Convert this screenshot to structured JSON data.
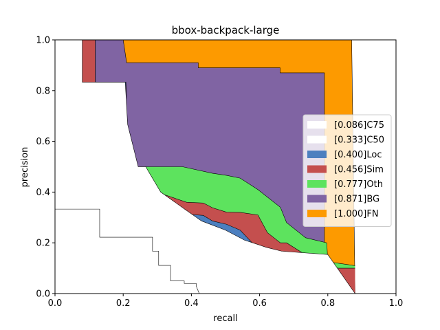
{
  "chart_data": {
    "type": "area",
    "title": "bbox-backpack-large",
    "xlabel": "recall",
    "ylabel": "precision",
    "xlim": [
      0,
      1
    ],
    "ylim": [
      0,
      1
    ],
    "xticks": [
      "0.0",
      "0.2",
      "0.4",
      "0.6",
      "0.8",
      "1.0"
    ],
    "yticks": [
      "0.0",
      "0.2",
      "0.4",
      "0.6",
      "0.8",
      "1.0"
    ],
    "legend_position": "right",
    "series": [
      {
        "name": "[0.086]C75",
        "color": "#ffffff",
        "x": [
          0,
          0.118,
          0.118,
          0.131,
          0.131,
          0.252,
          0.252,
          0.286,
          0.286,
          0.304,
          0.304,
          0.327,
          0.327,
          0.339,
          0.339,
          0.362,
          0.362,
          0.379,
          0.379,
          0.414,
          0.414,
          0.423
        ],
        "y": [
          0.333,
          0.333,
          0.333,
          0.333,
          0.222,
          0.222,
          0.222,
          0.222,
          0.167,
          0.167,
          0.111,
          0.111,
          0.111,
          0.111,
          0.05,
          0.05,
          0.05,
          0.05,
          0.04,
          0.04,
          0.03,
          0
        ]
      },
      {
        "name": "[0.333]C50",
        "color": "#ffffff",
        "x": [
          0,
          0.08,
          0.08,
          0.13,
          0.13,
          0.206,
          0.213,
          0.213,
          0.244,
          0.266,
          0.31,
          0.38,
          0.43,
          0.5,
          0.54,
          0.555,
          0.58,
          0.62,
          0.665,
          0.665,
          0.8,
          0.8,
          0.88
        ],
        "y": [
          1,
          1,
          0.833,
          0.833,
          0.833,
          0.833,
          0.667,
          0.667,
          0.5,
          0.5,
          0.4,
          0.333,
          0.286,
          0.25,
          0.222,
          0.211,
          0.2,
          0.182,
          0.167,
          0.167,
          0.154,
          0.154,
          0
        ]
      },
      {
        "name": "[0.400]Loc",
        "color": "#4c7fbf",
        "x": [
          0,
          0.08,
          0.08,
          0.208,
          0.213,
          0.244,
          0.298,
          0.386,
          0.435,
          0.462,
          0.503,
          0.543,
          0.595,
          0.623,
          0.661,
          0.679,
          0.785,
          0.797,
          0.88
        ],
        "y": [
          1,
          1,
          0.833,
          0.833,
          0.41,
          0.41,
          0.375,
          0.313,
          0.308,
          0.286,
          0.273,
          0.25,
          0.176,
          0.156,
          0.094,
          0.074,
          0.074,
          0.056,
          0
        ]
      },
      {
        "name": "[0.456]Sim",
        "color": "#c44f4e",
        "x": [
          0,
          0.08,
          0.118,
          0.118,
          0.208,
          0.213,
          0.244,
          0.298,
          0.386,
          0.435,
          0.462,
          0.503,
          0.543,
          0.595,
          0.623,
          0.661,
          0.679,
          0.797,
          0.828,
          0.88
        ],
        "y": [
          1,
          1,
          1,
          0.833,
          0.833,
          0.44,
          0.44,
          0.4,
          0.36,
          0.357,
          0.338,
          0.321,
          0.32,
          0.31,
          0.24,
          0.2,
          0.2,
          0.1,
          0.1,
          0.1
        ]
      },
      {
        "name": "[0.777]Oth",
        "color": "#5de35e",
        "x": [
          0,
          0.118,
          0.118,
          0.208,
          0.213,
          0.374,
          0.462,
          0.503,
          0.543,
          0.595,
          0.661,
          0.679,
          0.735,
          0.797,
          0.8,
          0.828,
          0.88
        ],
        "y": [
          1,
          1,
          0.833,
          0.833,
          0.5,
          0.5,
          0.474,
          0.466,
          0.455,
          0.41,
          0.34,
          0.28,
          0.22,
          0.2,
          0.125,
          0.12,
          0.11
        ]
      },
      {
        "name": "[0.871]BG",
        "color": "#8064a3",
        "x": [
          0,
          0.2,
          0.21,
          0.42,
          0.42,
          0.66,
          0.66,
          0.79,
          0.79,
          0.87
        ],
        "y": [
          1,
          1,
          0.91,
          0.91,
          0.89,
          0.89,
          0.87,
          0.87,
          0.12,
          0.11
        ]
      },
      {
        "name": "[1.000]FN",
        "color": "#fd9a00",
        "x": [
          0,
          0.87,
          0.87,
          0.88,
          1.0
        ],
        "y": [
          1,
          1,
          1,
          0,
          0
        ]
      }
    ]
  }
}
